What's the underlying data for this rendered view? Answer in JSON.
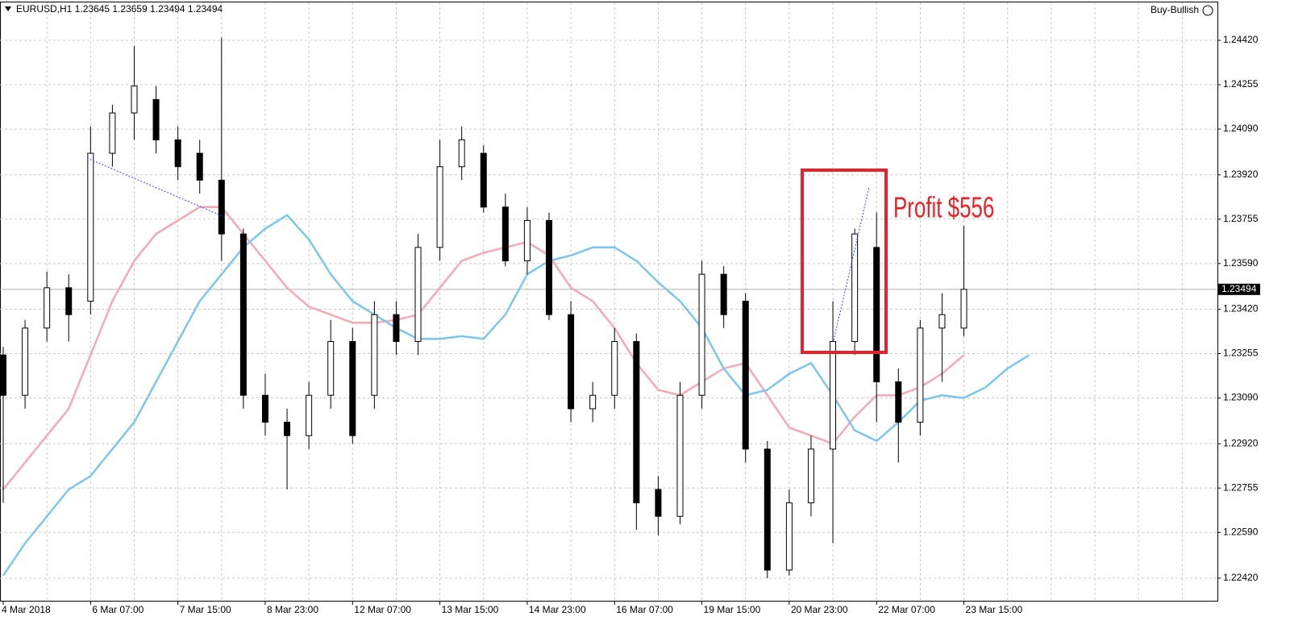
{
  "chart_data": {
    "type": "candlestick",
    "title": "EURUSD,H1  1.23645 1.23659 1.23494 1.23494",
    "indicator": "Buy-Bullish",
    "annotation": "Profit $556",
    "categories": [
      "4 Mar 2018",
      null,
      null,
      null,
      "6 Mar 07:00",
      null,
      null,
      null,
      "7 Mar 15:00",
      null,
      null,
      null,
      "8 Mar 23:00",
      null,
      null,
      null,
      "12 Mar 07:00",
      null,
      null,
      null,
      "13 Mar 15:00",
      null,
      null,
      null,
      "14 Mar 23:00",
      null,
      null,
      null,
      "16 Mar 07:00",
      null,
      null,
      null,
      "19 Mar 15:00",
      null,
      null,
      null,
      "20 Mar 23:00",
      null,
      null,
      null,
      "22 Mar 07:00",
      null,
      null,
      null,
      "23 Mar 15:00",
      null,
      null,
      null,
      null,
      null,
      null,
      null,
      null,
      null,
      null,
      null
    ],
    "open": [
      1.2325,
      1.231,
      1.2335,
      1.235,
      1.2345,
      1.24,
      1.2415,
      1.242,
      1.2405,
      1.24,
      1.239,
      1.237,
      1.231,
      1.23,
      1.2295,
      1.231,
      1.233,
      1.231,
      1.234,
      1.233,
      1.2365,
      1.2395,
      1.24,
      1.238,
      1.236,
      1.2375,
      1.234,
      1.2305,
      1.231,
      1.233,
      1.2275,
      1.2265,
      1.231,
      1.2355,
      1.2345,
      1.229,
      1.2245,
      1.227,
      1.229,
      1.233,
      1.2365,
      1.2315,
      1.23,
      1.2335,
      1.2335,
      null,
      null,
      null,
      null,
      null,
      null,
      null,
      null,
      null,
      null,
      null
    ],
    "high": [
      1.2328,
      1.2338,
      1.2356,
      1.2355,
      1.241,
      1.2418,
      1.244,
      1.2425,
      1.241,
      1.2405,
      1.2443,
      1.2372,
      1.2318,
      1.2305,
      1.2315,
      1.2338,
      1.2335,
      1.2345,
      1.2345,
      1.237,
      1.2405,
      1.241,
      1.2403,
      1.2385,
      1.238,
      1.2378,
      1.2345,
      1.2315,
      1.2335,
      1.2333,
      1.228,
      1.2315,
      1.236,
      1.2358,
      1.2348,
      1.2293,
      1.2275,
      1.2295,
      1.2345,
      1.2372,
      1.2378,
      1.232,
      1.2338,
      1.2348,
      1.2373,
      null,
      null,
      null,
      null,
      null,
      null,
      null,
      null,
      null,
      null,
      null
    ],
    "low": [
      1.227,
      1.2305,
      1.233,
      1.233,
      1.234,
      1.2395,
      1.2405,
      1.24,
      1.239,
      1.2385,
      1.236,
      1.2305,
      1.2295,
      1.2275,
      1.229,
      1.2305,
      1.2292,
      1.2305,
      1.2325,
      1.2325,
      1.236,
      1.239,
      1.2378,
      1.2358,
      1.2355,
      1.2338,
      1.23,
      1.23,
      1.2305,
      1.226,
      1.2258,
      1.2262,
      1.2305,
      1.2335,
      1.2285,
      1.2242,
      1.2243,
      1.2265,
      1.2255,
      1.2325,
      1.23,
      1.2285,
      1.2295,
      1.2315,
      1.2332,
      null,
      null,
      null,
      null,
      null,
      null,
      null,
      null,
      null,
      null,
      null
    ],
    "close": [
      1.231,
      1.2335,
      1.235,
      1.234,
      1.24,
      1.2415,
      1.2425,
      1.2405,
      1.2395,
      1.239,
      1.237,
      1.231,
      1.23,
      1.2295,
      1.231,
      1.233,
      1.2295,
      1.234,
      1.233,
      1.2365,
      1.2395,
      1.2405,
      1.238,
      1.236,
      1.2375,
      1.234,
      1.2305,
      1.231,
      1.233,
      1.227,
      1.2265,
      1.231,
      1.2355,
      1.234,
      1.229,
      1.2245,
      1.227,
      1.229,
      1.233,
      1.237,
      1.2315,
      1.23,
      1.2335,
      1.234,
      1.23494,
      null,
      null,
      null,
      null,
      null,
      null,
      null,
      null,
      null,
      null,
      null
    ],
    "up_color": "#ffffff",
    "down_color": "#000000",
    "moving_averages": [
      {
        "color": "#f4a9b4",
        "values": [
          1.2275,
          1.2285,
          1.2295,
          1.2305,
          1.2325,
          1.2345,
          1.236,
          1.237,
          1.2375,
          1.238,
          1.238,
          1.237,
          1.236,
          1.235,
          1.2343,
          1.234,
          1.2337,
          1.2337,
          1.2338,
          1.234,
          1.235,
          1.236,
          1.2363,
          1.2365,
          1.2367,
          1.2362,
          1.235,
          1.2345,
          1.2335,
          1.2322,
          1.2312,
          1.231,
          1.2315,
          1.232,
          1.2322,
          1.231,
          1.2298,
          1.2295,
          1.2292,
          1.2302,
          1.231,
          1.231,
          1.2313,
          1.2318,
          1.2325,
          null,
          null,
          null,
          null,
          null,
          null,
          null,
          null,
          null,
          null,
          null
        ]
      },
      {
        "color": "#7cc6ee",
        "values": [
          1.2243,
          1.2255,
          1.2265,
          1.2275,
          1.228,
          1.229,
          1.23,
          1.2315,
          1.233,
          1.2345,
          1.2355,
          1.2365,
          1.2372,
          1.2377,
          1.2368,
          1.2355,
          1.2345,
          1.234,
          1.2335,
          1.2331,
          1.2331,
          1.2332,
          1.2331,
          1.234,
          1.2355,
          1.236,
          1.2362,
          1.2365,
          1.2365,
          1.236,
          1.2352,
          1.2345,
          1.2335,
          1.232,
          1.231,
          1.2312,
          1.2318,
          1.2322,
          1.231,
          1.2297,
          1.2293,
          1.23,
          1.2308,
          1.231,
          1.2309,
          1.2313,
          1.232,
          1.2325,
          null,
          null,
          null,
          null,
          null,
          null,
          null,
          null
        ]
      }
    ],
    "last_price": 1.23494,
    "ylim": [
      1.22336,
      1.2457
    ],
    "yticks": [
      {
        "value": 1.2442,
        "label": "1.24420"
      },
      1.24255,
      {
        "value": 1.2409,
        "label": "1.24090"
      },
      {
        "value": 1.2392,
        "label": "1.23920"
      },
      1.23755,
      {
        "value": 1.2359,
        "label": "1.23590"
      },
      {
        "value": 1.2342,
        "label": "1.23420"
      },
      1.23255,
      {
        "value": 1.2309,
        "label": "1.23090"
      },
      {
        "value": 1.2292,
        "label": "1.22920"
      },
      1.22755,
      {
        "value": 1.2259,
        "label": "1.22590"
      },
      {
        "value": 1.2242,
        "label": "1.22420"
      }
    ],
    "grid": true
  }
}
